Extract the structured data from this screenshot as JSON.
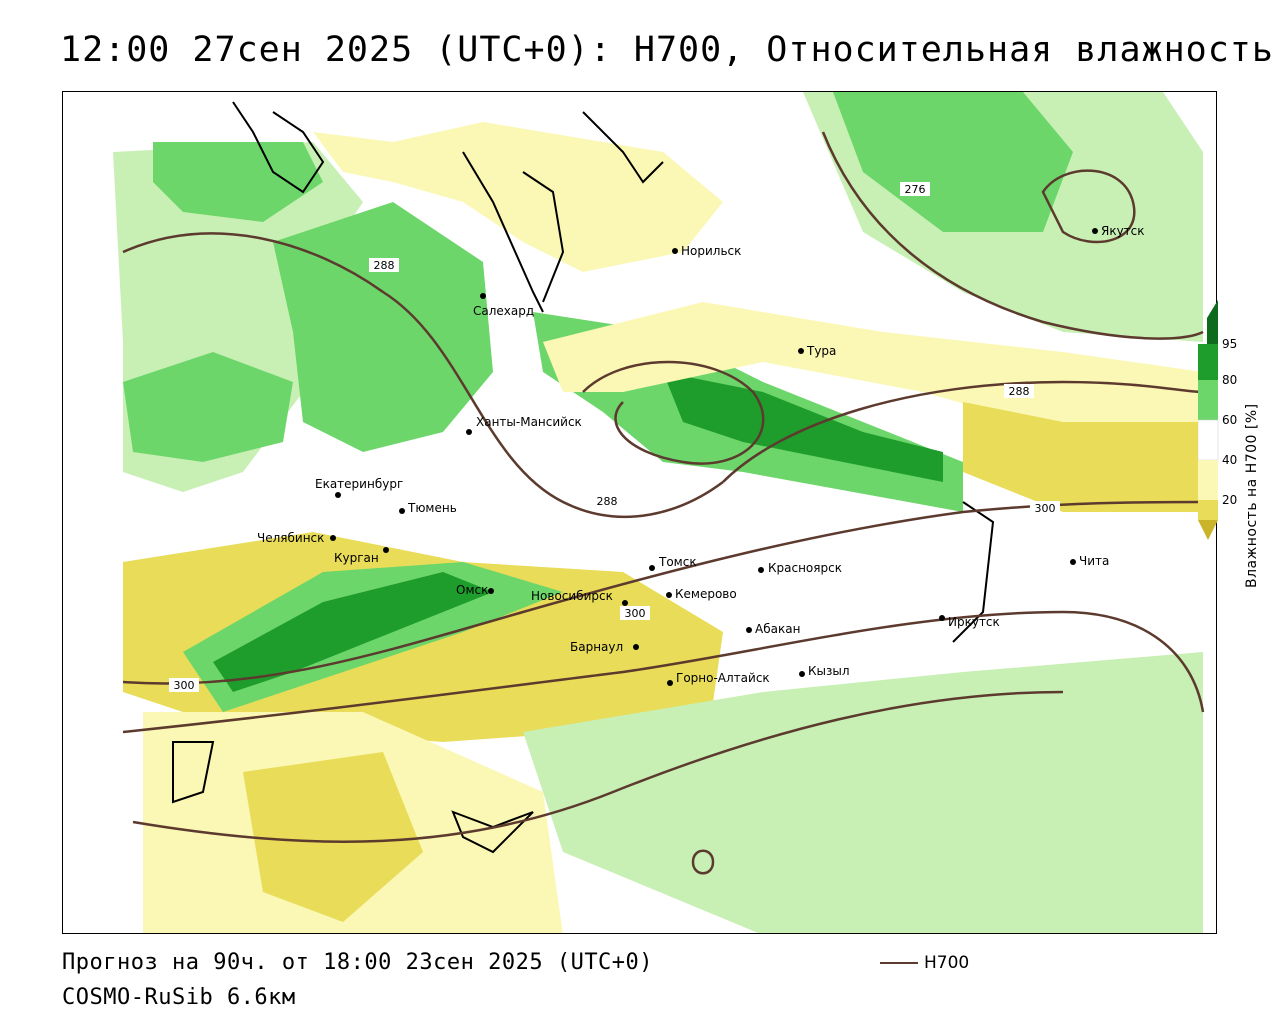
{
  "header": {
    "title": "12:00 27сен 2025 (UTC+0): H700, Относительная влажность"
  },
  "footer": {
    "forecast": "Прогноз на 90ч. от 18:00 23сен 2025 (UTC+0)",
    "model": "COSMO-RuSib 6.6км",
    "legend_label": "H700"
  },
  "colorbar": {
    "title": "Влажность на H700 [%]",
    "ticks": [
      "95",
      "80",
      "60",
      "40",
      "20"
    ],
    "colors": {
      "very_dry": "#c9b42a",
      "dry": "#e8dc58",
      "moderate_dry": "#fbf7b4",
      "neutral": "#ffffff",
      "moist": "#c8f0b4",
      "wet": "#6cd66a",
      "very_wet": "#1f9d2c",
      "saturated": "#0f6b1c"
    }
  },
  "map": {
    "contour_color": "#5c3a2e",
    "contour_labels": [
      "288",
      "276",
      "288",
      "288",
      "300",
      "300",
      "300"
    ],
    "cities": [
      "Норильск",
      "Якутск",
      "Салехард",
      "Тура",
      "Ханты-Мансийск",
      "Екатеринбург",
      "Тюмень",
      "Челябинск",
      "Курган",
      "Омск",
      "Новосибирск",
      "Томск",
      "Кемерово",
      "Красноярск",
      "Барнаул",
      "Абакан",
      "Горно-Алтайск",
      "Кызыл",
      "Иркутск",
      "Чита"
    ]
  }
}
